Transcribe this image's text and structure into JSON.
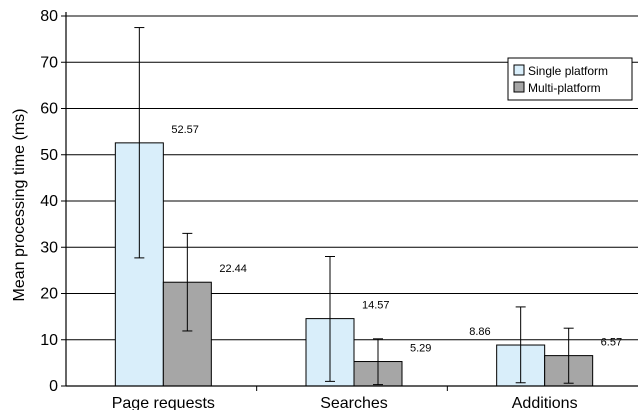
{
  "chart_data": {
    "type": "bar",
    "ylabel": "Mean processing time (ms)",
    "ylim": [
      0,
      80
    ],
    "yticks": [
      0,
      10,
      20,
      30,
      40,
      50,
      60,
      70,
      80
    ],
    "grid": true,
    "legend_position": "top-right",
    "categories": [
      "Page requests",
      "Searches",
      "Additions"
    ],
    "series": [
      {
        "name": "Single platform",
        "color": "#d9eefa",
        "values": [
          52.57,
          14.57,
          8.86
        ],
        "labels": [
          "52.57",
          "14.57",
          "8.86"
        ],
        "error_low": [
          27.7,
          1.0,
          0.7
        ],
        "error_high": [
          77.5,
          28.0,
          17.1
        ]
      },
      {
        "name": "Multi-platform",
        "color": "#a6a6a6",
        "values": [
          22.44,
          5.29,
          6.57
        ],
        "labels": [
          "22.44",
          "5.29",
          "6.57"
        ],
        "error_low": [
          11.9,
          0.3,
          0.6
        ],
        "error_high": [
          33.0,
          10.2,
          12.5
        ]
      }
    ]
  }
}
